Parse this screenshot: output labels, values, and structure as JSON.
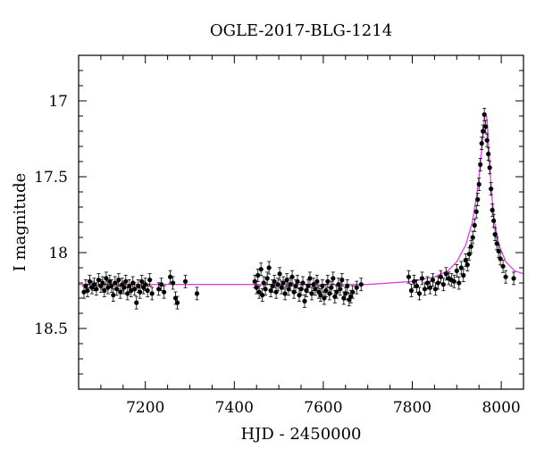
{
  "chart_data": {
    "type": "scatter",
    "title": "OGLE-2017-BLG-1214",
    "xlabel": "HJD - 2450000",
    "ylabel": "I magnitude",
    "xlim": [
      7050,
      8050
    ],
    "ylim": [
      18.9,
      16.7
    ],
    "y_inverted": true,
    "x_ticks_major": [
      7200,
      7400,
      7600,
      7800,
      8000
    ],
    "x_tick_labels": [
      "7200",
      "7400",
      "7600",
      "7800",
      "8000"
    ],
    "y_ticks_major": [
      17,
      17.5,
      18,
      18.5
    ],
    "y_tick_labels": [
      "17",
      "17.5",
      "18",
      "18.5"
    ],
    "grid": false,
    "legend": "none",
    "colors": {
      "points": "#000000",
      "model": "#e040e0",
      "axes": "#000000"
    },
    "model": {
      "name": "",
      "type": "microlensing-fit",
      "x": [
        7050,
        7300,
        7500,
        7700,
        7800,
        7850,
        7880,
        7900,
        7920,
        7935,
        7945,
        7952,
        7958,
        7962,
        7965,
        7968,
        7972,
        7978,
        7985,
        7995,
        8010,
        8030,
        8050
      ],
      "y": [
        18.21,
        18.21,
        18.21,
        18.21,
        18.19,
        18.16,
        18.12,
        18.06,
        17.95,
        17.8,
        17.62,
        17.45,
        17.25,
        17.12,
        17.08,
        17.12,
        17.32,
        17.6,
        17.8,
        17.95,
        18.06,
        18.12,
        18.14
      ]
    },
    "series": [
      {
        "name": "",
        "x": [
          7062,
          7066,
          7070,
          7075,
          7080,
          7085,
          7090,
          7095,
          7100,
          7104,
          7108,
          7112,
          7116,
          7120,
          7124,
          7128,
          7132,
          7136,
          7140,
          7144,
          7148,
          7152,
          7156,
          7160,
          7164,
          7168,
          7172,
          7176,
          7180,
          7184,
          7188,
          7192,
          7196,
          7200,
          7205,
          7210,
          7215,
          7230,
          7236,
          7242,
          7256,
          7262,
          7268,
          7272,
          7290,
          7316,
          7446,
          7450,
          7453,
          7456,
          7460,
          7463,
          7466,
          7470,
          7474,
          7478,
          7482,
          7486,
          7490,
          7494,
          7498,
          7502,
          7506,
          7510,
          7514,
          7518,
          7522,
          7526,
          7530,
          7534,
          7538,
          7542,
          7546,
          7550,
          7554,
          7558,
          7562,
          7566,
          7570,
          7574,
          7578,
          7582,
          7586,
          7590,
          7594,
          7598,
          7602,
          7606,
          7610,
          7614,
          7618,
          7622,
          7626,
          7630,
          7634,
          7638,
          7642,
          7646,
          7650,
          7654,
          7658,
          7662,
          7666,
          7675,
          7685,
          7792,
          7798,
          7804,
          7810,
          7816,
          7822,
          7828,
          7834,
          7840,
          7846,
          7852,
          7858,
          7864,
          7870,
          7876,
          7882,
          7888,
          7894,
          7900,
          7905,
          7910,
          7915,
          7920,
          7924,
          7928,
          7932,
          7936,
          7940,
          7944,
          7947,
          7950,
          7953,
          7956,
          7959,
          7962,
          7965,
          7968,
          7971,
          7974,
          7977,
          7980,
          7983,
          7986,
          7990,
          7994,
          7998,
          8004,
          8010,
          8028
        ],
        "y": [
          18.26,
          18.22,
          18.25,
          18.19,
          18.23,
          18.21,
          18.24,
          18.18,
          18.22,
          18.2,
          18.25,
          18.17,
          18.23,
          18.19,
          18.22,
          18.28,
          18.2,
          18.24,
          18.18,
          18.26,
          18.21,
          18.23,
          18.19,
          18.27,
          18.22,
          18.25,
          18.2,
          18.24,
          18.33,
          18.22,
          18.26,
          18.19,
          18.23,
          18.21,
          18.25,
          18.18,
          18.27,
          18.24,
          18.21,
          18.26,
          18.16,
          18.2,
          18.3,
          18.33,
          18.19,
          18.27,
          18.19,
          18.23,
          18.15,
          18.26,
          18.11,
          18.28,
          18.2,
          18.24,
          18.17,
          18.1,
          18.25,
          18.22,
          18.19,
          18.26,
          18.21,
          18.14,
          18.23,
          18.2,
          18.27,
          18.18,
          18.24,
          18.21,
          18.16,
          18.26,
          18.22,
          18.19,
          18.28,
          18.24,
          18.2,
          18.32,
          18.25,
          18.22,
          18.17,
          18.27,
          18.21,
          18.24,
          18.19,
          18.26,
          18.28,
          18.22,
          18.3,
          18.25,
          18.19,
          18.27,
          18.23,
          18.17,
          18.29,
          18.26,
          18.21,
          18.24,
          18.18,
          18.3,
          18.27,
          18.22,
          18.31,
          18.29,
          18.26,
          18.23,
          18.21,
          18.16,
          18.25,
          18.19,
          18.22,
          18.27,
          18.17,
          18.24,
          18.2,
          18.23,
          18.18,
          18.24,
          18.2,
          18.16,
          18.21,
          18.14,
          18.17,
          18.18,
          18.19,
          18.12,
          18.2,
          18.1,
          18.15,
          18.05,
          18.08,
          18.01,
          17.96,
          17.9,
          17.82,
          17.73,
          17.65,
          17.55,
          17.42,
          17.28,
          17.2,
          17.09,
          17.17,
          17.26,
          17.35,
          17.44,
          17.58,
          17.72,
          17.79,
          17.88,
          17.94,
          17.99,
          18.04,
          18.09,
          18.16,
          18.17
        ]
      }
    ]
  }
}
